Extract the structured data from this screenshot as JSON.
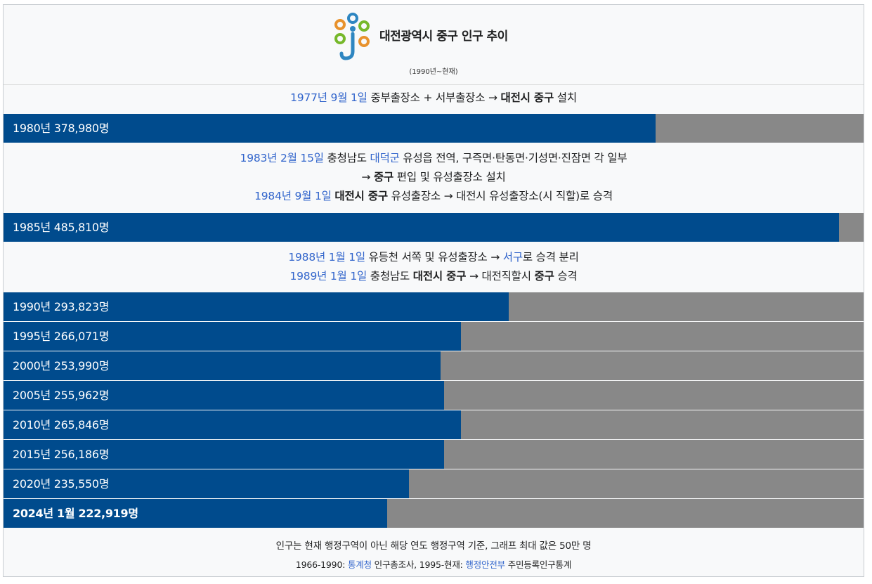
{
  "header": {
    "title": "대전광역시 중구 인구 추이",
    "subtitle": "(1990년~현재)"
  },
  "notes": [
    {
      "lines": [
        [
          {
            "t": "1977년 9월 1일",
            "s": "link"
          },
          {
            "t": " 중부출장소 + 서부출장소 → "
          },
          {
            "t": "대전시 중구",
            "s": "bold"
          },
          {
            "t": " 설치"
          }
        ]
      ]
    },
    {
      "lines": [
        [
          {
            "t": "1983년 2월 15일",
            "s": "link"
          },
          {
            "t": " 충청남도 "
          },
          {
            "t": "대덕군",
            "s": "link"
          },
          {
            "t": " 유성읍 전역, 구즉면·탄동면·기성면·진잠면 각 일부"
          }
        ],
        [
          {
            "t": "→ "
          },
          {
            "t": "중구",
            "s": "bold"
          },
          {
            "t": " 편입 및 유성출장소 설치"
          }
        ],
        [
          {
            "t": "1984년 9월 1일",
            "s": "link"
          },
          {
            "t": " "
          },
          {
            "t": "대전시 중구",
            "s": "bold"
          },
          {
            "t": " 유성출장소 → 대전시 유성출장소(시 직할)로 승격"
          }
        ]
      ]
    },
    {
      "lines": [
        [
          {
            "t": "1988년 1월 1일",
            "s": "link"
          },
          {
            "t": " 유등천 서쪽 및 유성출장소 → "
          },
          {
            "t": "서구",
            "s": "link"
          },
          {
            "t": "로 승격 분리"
          }
        ],
        [
          {
            "t": "1989년 1월 1일",
            "s": "link"
          },
          {
            "t": " 충청남도 "
          },
          {
            "t": "대전시 중구",
            "s": "bold"
          },
          {
            "t": " → 대전직할시 "
          },
          {
            "t": "중구",
            "s": "bold"
          },
          {
            "t": " 승격"
          }
        ]
      ]
    }
  ],
  "chart_data": {
    "type": "bar",
    "orientation": "horizontal",
    "max_value": 500000,
    "categories": [
      "1980년",
      "1985년",
      "1990년",
      "1995년",
      "2000년",
      "2005년",
      "2010년",
      "2015년",
      "2020년",
      "2024년 1월"
    ],
    "values": [
      378980,
      485810,
      293823,
      266071,
      253990,
      255962,
      265846,
      256186,
      235550,
      222919
    ],
    "labels": [
      "1980년 378,980명",
      "1985년 485,810명",
      "1990년 293,823명",
      "1995년 266,071명",
      "2000년 253,990명",
      "2005년 255,962명",
      "2010년 265,846명",
      "2015년 256,186명",
      "2020년 235,550명",
      "2024년 1월 222,919명"
    ],
    "colors": {
      "fill": "#004b8d",
      "track": "#888888"
    }
  },
  "footer": {
    "line1": "인구는 현재 행정구역이 아닌 해당 연도 행정구역 기준, 그래프 최대 값은 50만 명",
    "line2": [
      {
        "t": "1966-1990: "
      },
      {
        "t": "통계청",
        "s": "link"
      },
      {
        "t": " 인구총조사, 1995-현재: "
      },
      {
        "t": "행정안전부",
        "s": "link"
      },
      {
        "t": " 주민등록인구통계"
      }
    ]
  }
}
